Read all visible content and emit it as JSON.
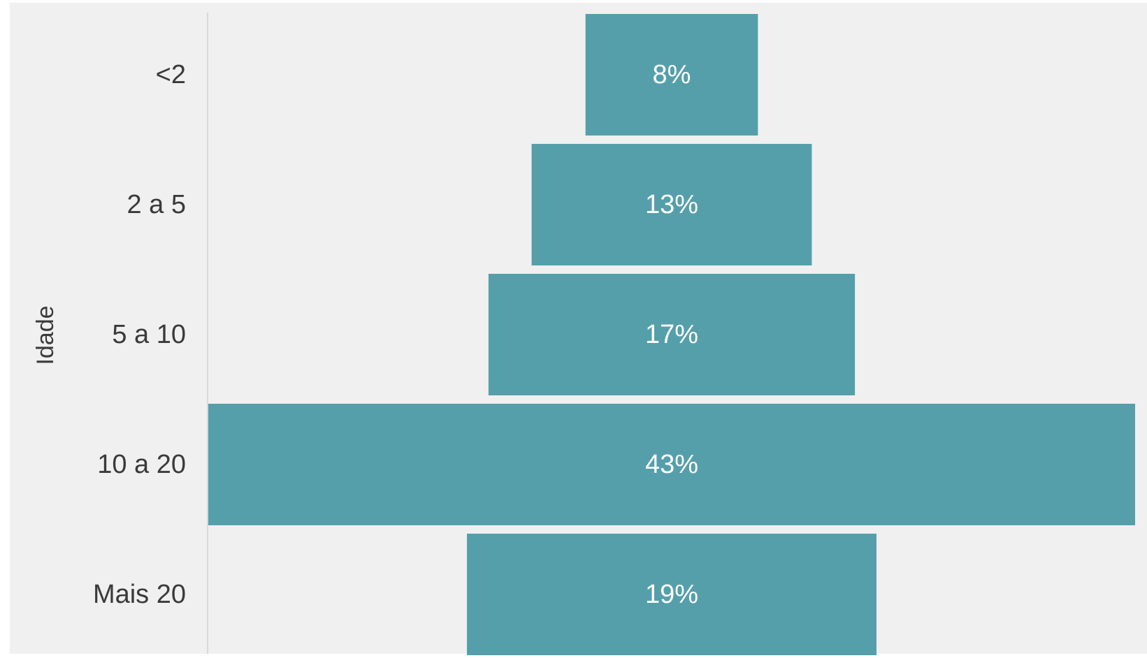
{
  "chart_data": {
    "type": "bar",
    "orientation": "horizontal-centered",
    "ylabel": "Idade",
    "categories": [
      "<2",
      "2 a 5",
      "5 a 10",
      "10 a 20",
      "Mais 20"
    ],
    "values": [
      8,
      13,
      17,
      43,
      19
    ],
    "value_labels": [
      "8%",
      "13%",
      "17%",
      "43%",
      "19%"
    ],
    "grid": false,
    "legend": "none"
  },
  "colors": {
    "bar": "#559fab",
    "plot_background": "#f0f0f0",
    "axis_line": "#d9d9d9",
    "value_text": "#ffffff",
    "category_text": "#3a3a3a"
  }
}
